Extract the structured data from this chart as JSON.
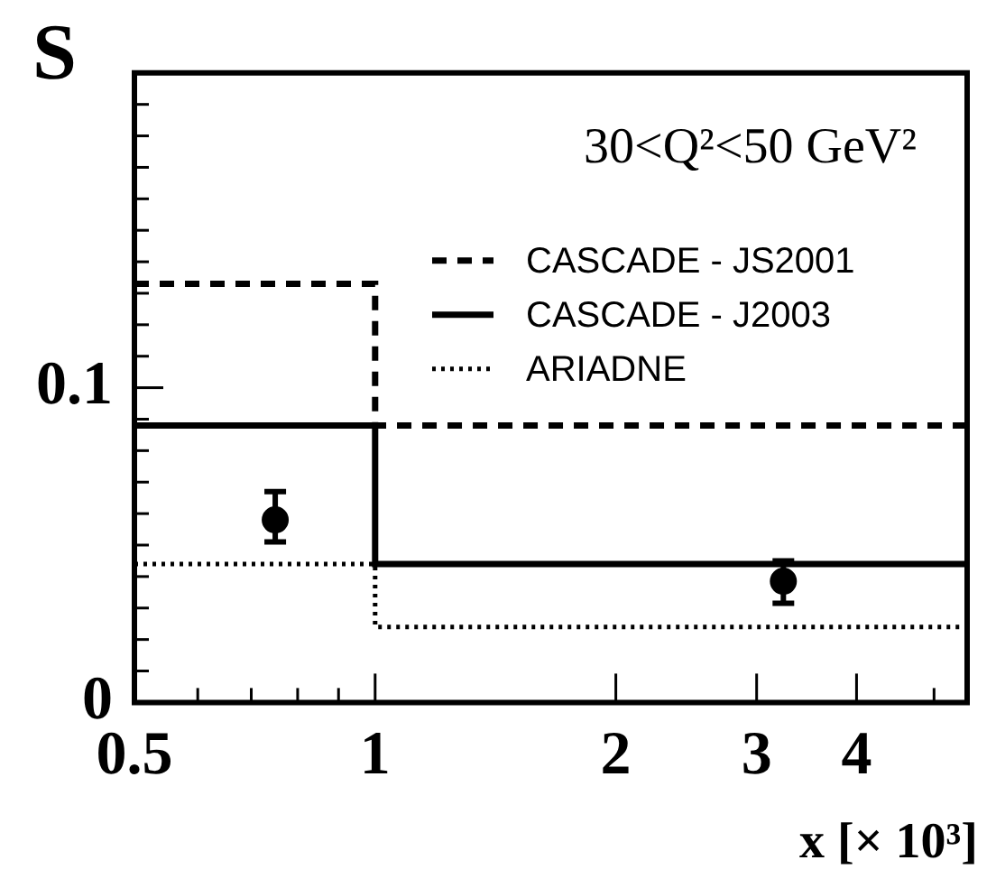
{
  "chart_data": {
    "type": "step",
    "title": "30<Q²<50 GeV²",
    "xlabel": "x [× 10³]",
    "ylabel": "S",
    "log": "x",
    "xlim": [
      0.5,
      5.5
    ],
    "ylim": [
      0,
      0.2
    ],
    "xticks": [
      0.5,
      {
        "value": 0.6,
        "label": null
      },
      {
        "value": 0.7,
        "label": null
      },
      {
        "value": 0.8,
        "label": null
      },
      {
        "value": 0.9,
        "label": null
      },
      1,
      2,
      3,
      4,
      {
        "value": 5,
        "label": null
      }
    ],
    "yticks": [
      0,
      {
        "value": 0.01,
        "label": null
      },
      {
        "value": 0.02,
        "label": null
      },
      {
        "value": 0.03,
        "label": null
      },
      {
        "value": 0.04,
        "label": null
      },
      {
        "value": 0.05,
        "label": null
      },
      {
        "value": 0.06,
        "label": null
      },
      {
        "value": 0.07,
        "label": null
      },
      {
        "value": 0.08,
        "label": null
      },
      {
        "value": 0.09,
        "label": null
      },
      0.1,
      {
        "value": 0.11,
        "label": null
      },
      {
        "value": 0.12,
        "label": null
      },
      {
        "value": 0.13,
        "label": null
      },
      {
        "value": 0.14,
        "label": null
      },
      {
        "value": 0.15,
        "label": null
      },
      {
        "value": 0.16,
        "label": null
      },
      {
        "value": 0.17,
        "label": null
      },
      {
        "value": 0.18,
        "label": null
      },
      {
        "value": 0.19,
        "label": null
      }
    ],
    "legend": "top right",
    "series": [
      {
        "name": "CASCADE - JS2001",
        "color": "#000000",
        "line_style": "dashed",
        "x": [
          0.5,
          1,
          5.5
        ],
        "values": [
          0.133,
          0.088,
          0.088
        ]
      },
      {
        "name": "CASCADE - J2003",
        "color": "#000000",
        "line_style": "solid",
        "x": [
          0.5,
          1,
          5.5
        ],
        "values": [
          0.088,
          0.044,
          0.044
        ]
      },
      {
        "name": "ARIADNE",
        "color": "#000000",
        "line_style": "dotted",
        "x": [
          0.5,
          1,
          5.5
        ],
        "values": [
          0.044,
          0.024,
          0.024
        ]
      },
      {
        "type": "scatter",
        "color": "#000000",
        "marker": "circle",
        "x": [
          0.75,
          3.24
        ],
        "values": [
          0.058,
          0.0385
        ],
        "errors": [
          [
            0.051,
            0.067
          ],
          [
            0.0315,
            0.045
          ]
        ]
      }
    ]
  }
}
